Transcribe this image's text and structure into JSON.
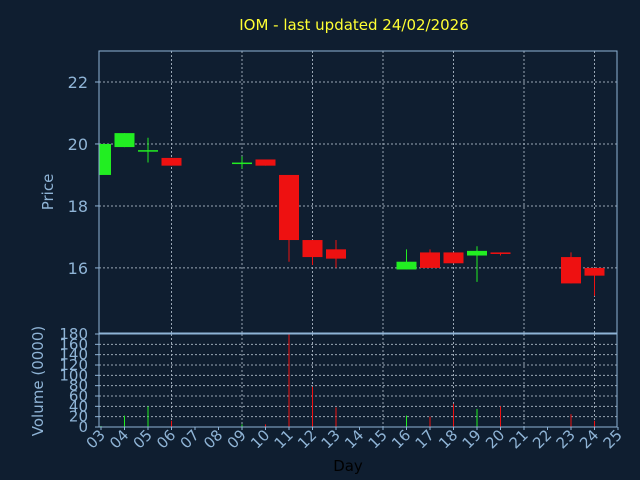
{
  "chart_data": {
    "title": "IOM - last updated 24/02/2026",
    "type": "candlestick",
    "xlabel": "Day",
    "colors": {
      "background": "#0f1e30",
      "title": "#ffff33",
      "axis_text": "#8fb4d6",
      "frame": "#8fb4d6",
      "grid": "#9aa7b5",
      "up": "#22ee22",
      "down": "#ee1111"
    },
    "x_ticks": [
      "03",
      "04",
      "05",
      "06",
      "07",
      "08",
      "09",
      "10",
      "11",
      "12",
      "13",
      "14",
      "15",
      "16",
      "17",
      "18",
      "19",
      "20",
      "21",
      "22",
      "23",
      "24",
      "25"
    ],
    "price": {
      "ylabel": "Price",
      "ylim": [
        13.9,
        23.0
      ],
      "yticks": [
        16,
        18,
        20,
        22
      ],
      "ytick_labels": [
        "16",
        "18",
        "20",
        "22"
      ]
    },
    "volume": {
      "ylabel": "Volume (0000)",
      "ylim": [
        0,
        180
      ],
      "yticks": [
        0,
        20,
        40,
        60,
        80,
        100,
        120,
        140,
        160,
        180
      ],
      "ytick_labels": [
        "0",
        "20",
        "40",
        "60",
        "80",
        "100",
        "120",
        "140",
        "160",
        "180"
      ]
    },
    "candles": [
      {
        "day": "03",
        "open": 19.0,
        "high": 20.0,
        "low": 19.0,
        "close": 20.0,
        "volume": 2
      },
      {
        "day": "04",
        "open": 19.9,
        "high": 20.35,
        "low": 19.9,
        "close": 20.35,
        "volume": 22
      },
      {
        "day": "05",
        "open": 19.8,
        "high": 20.2,
        "low": 19.4,
        "close": 19.8,
        "volume": 40
      },
      {
        "day": "06",
        "open": 19.55,
        "high": 19.55,
        "low": 19.3,
        "close": 19.3,
        "volume": 12
      },
      {
        "day": "09",
        "open": 19.4,
        "high": 19.6,
        "low": 19.2,
        "close": 19.4,
        "volume": 5
      },
      {
        "day": "10",
        "open": 19.5,
        "high": 19.5,
        "low": 19.3,
        "close": 19.3,
        "volume": 5
      },
      {
        "day": "11",
        "open": 19.0,
        "high": 19.0,
        "low": 16.2,
        "close": 16.9,
        "volume": 180
      },
      {
        "day": "12",
        "open": 16.9,
        "high": 16.9,
        "low": 16.1,
        "close": 16.35,
        "volume": 78
      },
      {
        "day": "13",
        "open": 16.6,
        "high": 16.9,
        "low": 16.0,
        "close": 16.3,
        "volume": 38
      },
      {
        "day": "16",
        "open": 15.95,
        "high": 16.6,
        "low": 15.95,
        "close": 16.2,
        "volume": 22
      },
      {
        "day": "17",
        "open": 16.5,
        "high": 16.6,
        "low": 16.0,
        "close": 16.0,
        "volume": 20
      },
      {
        "day": "18",
        "open": 16.5,
        "high": 16.5,
        "low": 16.15,
        "close": 16.15,
        "volume": 45
      },
      {
        "day": "19",
        "open": 16.4,
        "high": 16.7,
        "low": 15.55,
        "close": 16.55,
        "volume": 35
      },
      {
        "day": "20",
        "open": 16.5,
        "high": 16.5,
        "low": 16.4,
        "close": 16.45,
        "volume": 40
      },
      {
        "day": "23",
        "open": 16.35,
        "high": 16.5,
        "low": 15.5,
        "close": 15.5,
        "volume": 25
      },
      {
        "day": "24",
        "open": 16.0,
        "high": 16.0,
        "low": 15.1,
        "close": 15.75,
        "volume": 12
      }
    ]
  }
}
